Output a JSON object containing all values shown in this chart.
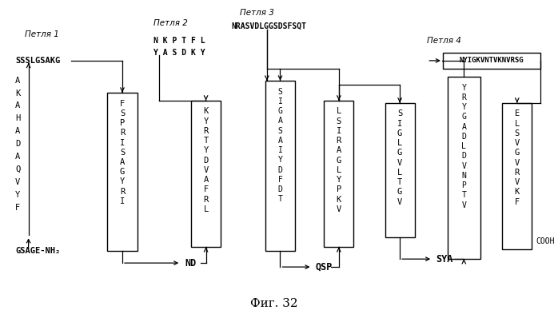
{
  "title": "Фиг. 32",
  "background_color": "#ffffff",
  "loop1_label": "Петля 1",
  "loop2_label": "Петля 2",
  "loop3_label": "Петля 3",
  "loop4_label": "Петля 4",
  "seq_ssslgsakg": "SSSLGSAKG",
  "seq_left": [
    "A",
    "K",
    "A",
    "H",
    "A",
    "D",
    "A",
    "Q",
    "V",
    "Y",
    "F"
  ],
  "bottom_left": "GSAGE-NH₂",
  "nd_label": "ND",
  "qsp_label": "QSP",
  "sya_label": "SYA",
  "loop2_seq1": "N K P T F L",
  "loop2_seq2": "Y A S D K Y",
  "loop3_seq": "NRASVDLGGSDSFSQT",
  "loop4_seq": "NYIGKVNTVKNVRSG",
  "cooh_label": "COOH",
  "box1_seq": [
    "F",
    "S",
    "P",
    "R",
    "I",
    "S",
    "A",
    "G",
    "Y",
    "R",
    "I"
  ],
  "box2_seq": [
    "K",
    "Y",
    "R",
    "T",
    "Y",
    "D",
    "V",
    "A",
    "F",
    "R",
    "L"
  ],
  "box3_seq": [
    "S",
    "I",
    "G",
    "A",
    "S",
    "A",
    "I",
    "Y",
    "D",
    "F",
    "D",
    "T"
  ],
  "box4_seq": [
    "L",
    "S",
    "I",
    "R",
    "A",
    "G",
    "L",
    "Y",
    "P",
    "K",
    "V"
  ],
  "box5_seq": [
    "S",
    "I",
    "G",
    "L",
    "G",
    "V",
    "L",
    "T",
    "G",
    "V"
  ],
  "box6_seq": [
    "Y",
    "R",
    "Y",
    "G",
    "A",
    "D",
    "L",
    "D",
    "V",
    "N",
    "P",
    "T",
    "V"
  ],
  "box7_seq": [
    "E",
    "L",
    "S",
    "V",
    "G",
    "V",
    "R",
    "V",
    "K",
    "F"
  ]
}
